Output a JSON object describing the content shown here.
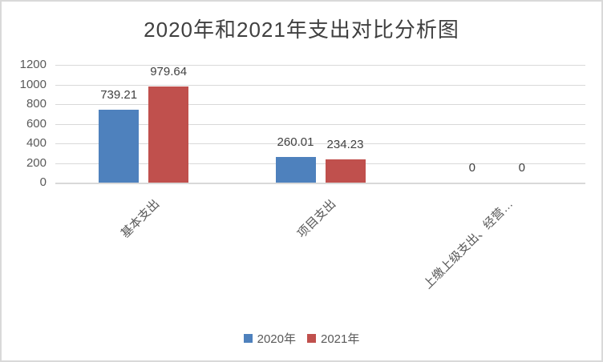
{
  "chart_data": {
    "type": "bar",
    "title": "2020年和2021年支出对比分析图",
    "categories": [
      "基本支出",
      "项目支出",
      "上缴上级支出、经营…"
    ],
    "series": [
      {
        "name": "2020年",
        "color": "#4E81BD",
        "values": [
          739.21,
          260.01,
          0
        ],
        "labels": [
          "739.21",
          "260.01",
          "0"
        ]
      },
      {
        "name": "2021年",
        "color": "#C0504D",
        "values": [
          979.64,
          234.23,
          0
        ],
        "labels": [
          "979.64",
          "234.23",
          "0"
        ]
      }
    ],
    "y_ticks": [
      0,
      200,
      400,
      600,
      800,
      1000,
      1200
    ],
    "ylim": [
      0,
      1200
    ],
    "grid": true,
    "legend_position": "bottom"
  }
}
